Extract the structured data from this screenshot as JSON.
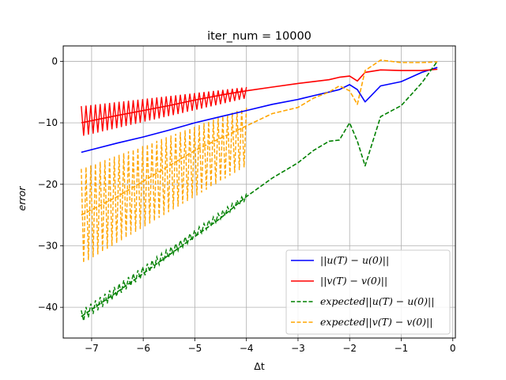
{
  "chart_data": {
    "type": "line",
    "title": "iter_num = 10000",
    "xlabel": "Δt",
    "ylabel": "error",
    "xlim": [
      -7.55,
      0.05
    ],
    "ylim": [
      -45.0,
      2.5
    ],
    "xticks": [
      -7,
      -6,
      -5,
      -4,
      -3,
      -2,
      -1,
      0
    ],
    "xtick_labels": [
      "−7",
      "−6",
      "−5",
      "−4",
      "−3",
      "−2",
      "−1",
      "0"
    ],
    "yticks": [
      0,
      -10,
      -20,
      -30,
      -40
    ],
    "ytick_labels": [
      "0",
      "−10",
      "−20",
      "−30",
      "−40"
    ],
    "grid": true,
    "legend_position": "lower-right",
    "series": [
      {
        "name": "||u(T) − u(0)||",
        "color": "#0000ff",
        "style": "solid",
        "x": [
          -7.2,
          -6.5,
          -6.0,
          -5.5,
          -5.0,
          -4.5,
          -4.0,
          -3.5,
          -3.0,
          -2.7,
          -2.4,
          -2.2,
          -2.0,
          -1.85,
          -1.7,
          -1.4,
          -1.0,
          -0.6,
          -0.3
        ],
        "y": [
          -14.8,
          -13.3,
          -12.3,
          -11.2,
          -10.0,
          -9.0,
          -8.0,
          -7.0,
          -6.2,
          -5.6,
          -5.0,
          -4.6,
          -3.8,
          -4.6,
          -6.6,
          -4.0,
          -3.3,
          -1.8,
          -1.0
        ]
      },
      {
        "name": "||v(T) − v(0)||",
        "color": "#ff0000",
        "style": "solid",
        "x": [
          -7.2,
          -6.5,
          -6.0,
          -5.5,
          -5.0,
          -4.5,
          -4.0,
          -3.5,
          -3.0,
          -2.7,
          -2.4,
          -2.2,
          -2.0,
          -1.85,
          -1.7,
          -1.4,
          -1.0,
          -0.6,
          -0.3
        ],
        "y": [
          -10.0,
          -8.8,
          -8.0,
          -7.2,
          -6.3,
          -5.5,
          -4.8,
          -4.2,
          -3.6,
          -3.3,
          -3.0,
          -2.6,
          -2.4,
          -3.2,
          -1.8,
          -1.4,
          -1.5,
          -1.5,
          -1.3
        ],
        "band": {
          "x": [
            -7.2,
            -4.0
          ],
          "upper": [
            -7.3,
            -4.2
          ],
          "lower": [
            -12.2,
            -6.0
          ]
        }
      },
      {
        "name": "expected||u(T) − u(0)||",
        "color": "#008000",
        "style": "dashed",
        "x": [
          -7.2,
          -6.5,
          -6.0,
          -5.5,
          -5.0,
          -4.5,
          -4.0,
          -3.5,
          -3.0,
          -2.7,
          -2.4,
          -2.2,
          -2.0,
          -1.85,
          -1.7,
          -1.4,
          -1.0,
          -0.6,
          -0.3
        ],
        "y": [
          -41.5,
          -37.5,
          -34.5,
          -31.5,
          -28.5,
          -25.5,
          -22.0,
          -19.0,
          -16.5,
          -14.5,
          -13.0,
          -12.8,
          -10.0,
          -13.0,
          -17.0,
          -9.0,
          -7.2,
          -3.5,
          0.0
        ],
        "band": {
          "x": [
            -7.2,
            -4.0
          ],
          "upper": [
            -40.5,
            -21.5
          ],
          "lower": [
            -42.5,
            -22.5
          ]
        }
      },
      {
        "name": "expected||v(T) − v(0)||",
        "color": "#ffa500",
        "style": "dashed",
        "x": [
          -7.2,
          -6.5,
          -6.0,
          -5.5,
          -5.0,
          -4.5,
          -4.0,
          -3.5,
          -3.0,
          -2.7,
          -2.4,
          -2.2,
          -2.0,
          -1.85,
          -1.7,
          -1.4,
          -1.0,
          -0.6,
          -0.3
        ],
        "y": [
          -25.0,
          -22.0,
          -19.5,
          -17.0,
          -14.5,
          -12.5,
          -10.5,
          -8.5,
          -7.5,
          -6.0,
          -5.0,
          -4.0,
          -4.8,
          -7.0,
          -1.5,
          0.2,
          -0.2,
          -0.2,
          -0.1
        ],
        "band": {
          "x": [
            -7.2,
            -4.0
          ],
          "upper": [
            -17.5,
            -7.5
          ],
          "lower": [
            -33.0,
            -17.0
          ]
        }
      }
    ]
  }
}
